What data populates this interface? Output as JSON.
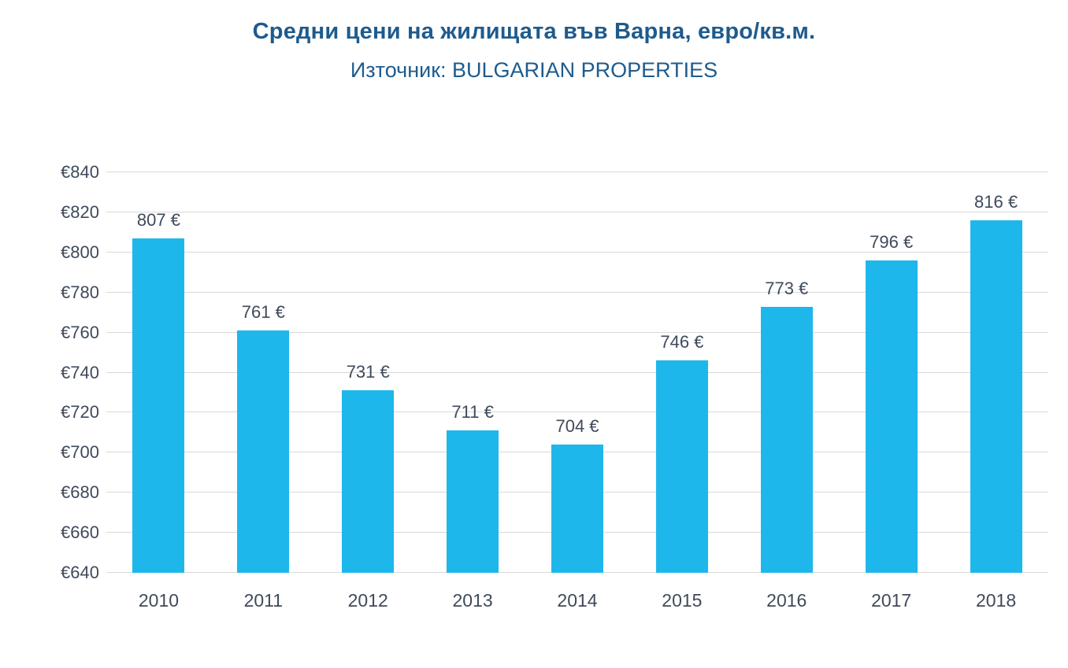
{
  "chart_data": {
    "type": "bar",
    "title": "Средни цени на жилищата във Варна, евро/кв.м.",
    "subtitle": "Източник: BULGARIAN PROPERTIES",
    "categories": [
      "2010",
      "2011",
      "2012",
      "2013",
      "2014",
      "2015",
      "2016",
      "2017",
      "2018"
    ],
    "values": [
      807,
      761,
      731,
      711,
      704,
      746,
      773,
      796,
      816
    ],
    "value_labels": [
      "807 €",
      "761 €",
      "731 €",
      "711 €",
      "704 €",
      "746 €",
      "773 €",
      "796 €",
      "816 €"
    ],
    "xlabel": "",
    "ylabel": "",
    "ylim": [
      640,
      840
    ],
    "yticks": [
      640,
      660,
      680,
      700,
      720,
      740,
      760,
      780,
      800,
      820,
      840
    ],
    "ytick_labels": [
      "€640",
      "€660",
      "€680",
      "€700",
      "€720",
      "€740",
      "€760",
      "€780",
      "€800",
      "€820",
      "€840"
    ],
    "grid": true,
    "legend_position": "none",
    "colors": {
      "bar": "#1EB7EC",
      "grid": "#D9D9D9",
      "title": "#1E5B8D",
      "labels": "#3F4A5A",
      "background": "#FFFFFF"
    }
  }
}
